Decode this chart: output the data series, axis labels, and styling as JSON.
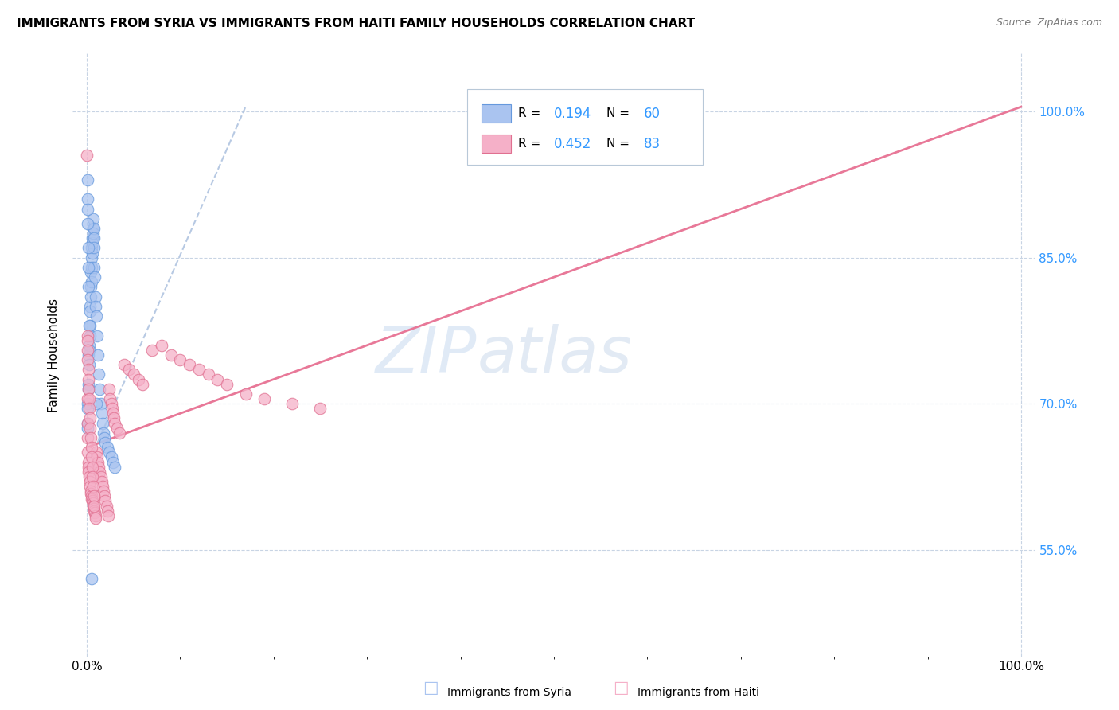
{
  "title": "IMMIGRANTS FROM SYRIA VS IMMIGRANTS FROM HAITI FAMILY HOUSEHOLDS CORRELATION CHART",
  "source": "Source: ZipAtlas.com",
  "ylabel": "Family Households",
  "syria_color": "#aac4f0",
  "syria_edge_color": "#6699dd",
  "haiti_color": "#f5b0c8",
  "haiti_edge_color": "#e07090",
  "trend_syria_color": "#b0c4e0",
  "trend_haiti_color": "#e87898",
  "watermark_color": "#dce8f5",
  "legend_blue": "#3399ff",
  "syria_R": "0.194",
  "syria_N": "60",
  "haiti_R": "0.452",
  "haiti_N": "83",
  "xlim": [
    -1.5,
    101.5
  ],
  "ylim": [
    44,
    106
  ],
  "yticks": [
    55,
    70,
    85,
    100
  ],
  "xticks": [
    0,
    100
  ],
  "grid_color": "#c8d4e4",
  "title_fontsize": 11,
  "source_fontsize": 9,
  "syria_points_x": [
    0.05,
    0.08,
    0.1,
    0.12,
    0.15,
    0.18,
    0.2,
    0.22,
    0.25,
    0.28,
    0.3,
    0.33,
    0.35,
    0.38,
    0.4,
    0.42,
    0.45,
    0.48,
    0.5,
    0.52,
    0.55,
    0.58,
    0.6,
    0.63,
    0.65,
    0.68,
    0.7,
    0.73,
    0.75,
    0.78,
    0.8,
    0.85,
    0.9,
    0.95,
    1.0,
    1.1,
    1.2,
    1.3,
    1.4,
    1.5,
    1.6,
    1.7,
    1.8,
    1.9,
    2.0,
    2.2,
    2.4,
    2.6,
    2.8,
    3.0,
    0.05,
    0.07,
    0.09,
    0.11,
    0.13,
    0.16,
    0.19,
    0.24,
    0.5,
    1.0
  ],
  "syria_points_y": [
    68.0,
    67.5,
    70.0,
    69.5,
    72.0,
    71.5,
    75.0,
    74.0,
    76.0,
    75.5,
    78.0,
    77.0,
    80.0,
    79.5,
    82.0,
    81.0,
    83.5,
    82.5,
    85.0,
    84.0,
    86.0,
    85.5,
    87.0,
    86.5,
    88.0,
    87.5,
    89.0,
    88.0,
    87.0,
    86.0,
    84.0,
    83.0,
    81.0,
    80.0,
    79.0,
    77.0,
    75.0,
    73.0,
    71.5,
    70.0,
    69.0,
    68.0,
    67.0,
    66.5,
    66.0,
    65.5,
    65.0,
    64.5,
    64.0,
    63.5,
    91.0,
    93.0,
    90.0,
    88.5,
    86.0,
    84.0,
    82.0,
    78.0,
    52.0,
    70.0
  ],
  "haiti_points_x": [
    0.05,
    0.08,
    0.1,
    0.12,
    0.15,
    0.18,
    0.2,
    0.25,
    0.3,
    0.35,
    0.4,
    0.45,
    0.5,
    0.55,
    0.6,
    0.65,
    0.7,
    0.75,
    0.8,
    0.85,
    0.9,
    0.95,
    1.0,
    1.1,
    1.2,
    1.3,
    1.4,
    1.5,
    1.6,
    1.7,
    1.8,
    1.9,
    2.0,
    2.1,
    2.2,
    2.3,
    2.4,
    2.5,
    2.6,
    2.7,
    2.8,
    2.9,
    3.0,
    3.2,
    3.5,
    4.0,
    4.5,
    5.0,
    5.5,
    6.0,
    7.0,
    8.0,
    9.0,
    10.0,
    11.0,
    12.0,
    13.0,
    14.0,
    15.0,
    17.0,
    19.0,
    22.0,
    25.0,
    0.05,
    0.07,
    0.09,
    0.11,
    0.13,
    0.16,
    0.19,
    0.22,
    0.27,
    0.32,
    0.37,
    0.42,
    0.47,
    0.52,
    0.57,
    0.62,
    0.68,
    0.73,
    0.78,
    0.03
  ],
  "haiti_points_y": [
    70.5,
    68.0,
    66.5,
    65.0,
    64.0,
    63.5,
    63.0,
    62.5,
    62.0,
    61.5,
    61.0,
    60.8,
    60.5,
    60.2,
    60.0,
    59.8,
    59.5,
    59.2,
    59.0,
    58.8,
    58.5,
    58.2,
    65.0,
    64.5,
    64.0,
    63.5,
    63.0,
    62.5,
    62.0,
    61.5,
    61.0,
    60.5,
    60.0,
    59.5,
    59.0,
    58.5,
    71.5,
    70.5,
    70.0,
    69.5,
    69.0,
    68.5,
    68.0,
    67.5,
    67.0,
    74.0,
    73.5,
    73.0,
    72.5,
    72.0,
    75.5,
    76.0,
    75.0,
    74.5,
    74.0,
    73.5,
    73.0,
    72.5,
    72.0,
    71.0,
    70.5,
    70.0,
    69.5,
    77.0,
    76.5,
    75.5,
    74.5,
    73.5,
    72.5,
    71.5,
    70.5,
    69.5,
    68.5,
    67.5,
    66.5,
    65.5,
    64.5,
    63.5,
    62.5,
    61.5,
    60.5,
    59.5,
    95.5
  ],
  "syria_trend_x0": 0.0,
  "syria_trend_y0": 63.5,
  "syria_trend_x1": 17.0,
  "syria_trend_y1": 100.5,
  "haiti_trend_x0": 0.0,
  "haiti_trend_y0": 65.5,
  "haiti_trend_x1": 100.0,
  "haiti_trend_y1": 100.5
}
